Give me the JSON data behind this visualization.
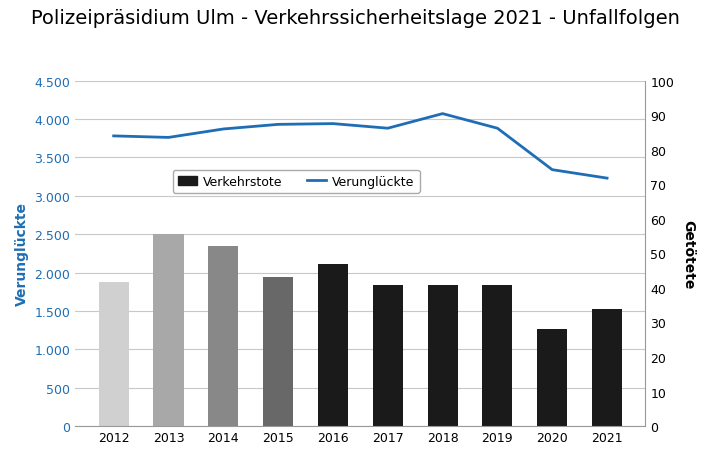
{
  "title": "Polizeipräsidium Ulm - Verkehrssicherheitslage 2021 - Unfallfolgen",
  "years": [
    2012,
    2013,
    2014,
    2015,
    2016,
    2017,
    2018,
    2019,
    2020,
    2021
  ],
  "verunglückte": [
    3780,
    3760,
    3870,
    3930,
    3940,
    3880,
    4070,
    3880,
    3340,
    3230
  ],
  "verkehrstote": [
    1880,
    2500,
    2340,
    1940,
    2110,
    1840,
    1840,
    1840,
    1260,
    1530
  ],
  "bar_colors": [
    "#d0d0d0",
    "#a8a8a8",
    "#888888",
    "#686868",
    "#1a1a1a",
    "#1a1a1a",
    "#1a1a1a",
    "#1a1a1a",
    "#1a1a1a",
    "#1a1a1a"
  ],
  "line_color": "#1f6eb5",
  "ylabel_left": "Verunglückte",
  "ylabel_right": "Getötete",
  "ylim_left": [
    0,
    4500
  ],
  "ylim_right": [
    0,
    100
  ],
  "yticks_left": [
    0,
    500,
    1000,
    1500,
    2000,
    2500,
    3000,
    3500,
    4000,
    4500
  ],
  "yticks_right": [
    0,
    10,
    20,
    30,
    40,
    50,
    60,
    70,
    80,
    90,
    100
  ],
  "legend_verkehrstote": "Verkehrstote",
  "legend_verunglückte": "Verunglückte",
  "title_fontsize": 14,
  "axis_label_color": "#1f6eb5",
  "background_color": "#ffffff",
  "grid_color": "#c8c8c8"
}
